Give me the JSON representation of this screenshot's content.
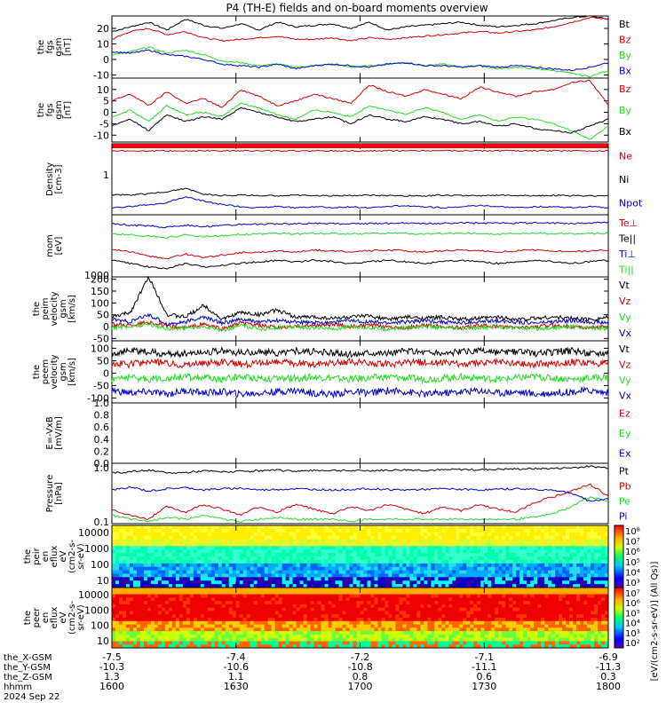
{
  "title": "P4 (TH-E) fields and on-board moments overview",
  "colors": {
    "black": "#000000",
    "red": "#d40000",
    "green": "#22dd22",
    "blue": "#0000cc"
  },
  "chart_data": [
    {
      "type": "line",
      "id": "fgs_gsm",
      "ylabel": [
        "the",
        "fgs",
        "gsm",
        "[nT]"
      ],
      "ylim": [
        -12,
        28
      ],
      "ticks": [
        20,
        10,
        0,
        -10
      ],
      "series": [
        {
          "name": "Bt",
          "color": "red_black",
          "values": [
            18,
            21,
            24,
            19,
            26,
            22,
            20,
            23,
            19,
            24,
            21,
            22,
            23,
            20,
            24,
            19,
            21,
            22,
            23,
            24,
            22,
            21,
            22,
            23,
            25,
            27,
            28,
            26
          ]
        },
        {
          "name": "Bz",
          "color": "red",
          "values": [
            13,
            18,
            20,
            16,
            18,
            14,
            12,
            13,
            14,
            15,
            13,
            13,
            14,
            12,
            14,
            13,
            14,
            15,
            16,
            17,
            18,
            17,
            18,
            19,
            21,
            24,
            27,
            26
          ]
        },
        {
          "name": "By",
          "color": "green",
          "values": [
            3,
            5,
            8,
            4,
            6,
            3,
            -1,
            -2,
            -4,
            -3,
            -5,
            -4,
            -3,
            -5,
            -4,
            -3,
            -2,
            -4,
            -3,
            -5,
            -4,
            -6,
            -5,
            -6,
            -7,
            -9,
            -11,
            -7
          ]
        },
        {
          "name": "Bx",
          "color": "blue",
          "values": [
            5,
            4,
            6,
            3,
            2,
            0,
            -3,
            -4,
            -5,
            -3,
            -6,
            -4,
            -3,
            -4,
            -5,
            -3,
            -2,
            -4,
            -4,
            -5,
            -4,
            -5,
            -4,
            -5,
            -6,
            -7,
            -5,
            -2
          ]
        }
      ]
    },
    {
      "type": "line",
      "id": "fgs_gse",
      "ylabel": [
        "the",
        "fgs",
        "gsm",
        "[nT]"
      ],
      "ylim": [
        -13,
        15
      ],
      "ticks": [
        10,
        5,
        0,
        -5,
        -10
      ],
      "series": [
        {
          "name": "Bz",
          "color": "red",
          "values": [
            5,
            8,
            3,
            9,
            4,
            6,
            2,
            10,
            7,
            3,
            5,
            8,
            6,
            4,
            12,
            9,
            7,
            10,
            8,
            6,
            11,
            9,
            7,
            9,
            10,
            13,
            14,
            3
          ]
        },
        {
          "name": "By",
          "color": "green",
          "values": [
            -2,
            1,
            -4,
            3,
            -1,
            0,
            -2,
            4,
            2,
            -1,
            -3,
            1,
            0,
            -2,
            3,
            1,
            -1,
            2,
            0,
            -3,
            -1,
            -4,
            -2,
            -3,
            -5,
            -8,
            -12,
            -6
          ]
        },
        {
          "name": "Bx",
          "color": "black",
          "values": [
            -6,
            -3,
            -8,
            -1,
            -4,
            -2,
            -3,
            2,
            0,
            -2,
            -4,
            -3,
            -2,
            -5,
            -1,
            -3,
            -4,
            -2,
            -3,
            -5,
            -4,
            -6,
            -5,
            -7,
            -8,
            -9,
            -6,
            -3
          ]
        }
      ]
    },
    {
      "type": "line",
      "id": "density",
      "ylabel": [
        "Density",
        "[cm-3]"
      ],
      "ylim": [
        0.1,
        6
      ],
      "log": true,
      "tick_labels": [
        "1"
      ],
      "series": [
        {
          "name": "Ne",
          "color": "red",
          "values": [
            4,
            4,
            4,
            4,
            4,
            4,
            4,
            4,
            4,
            4,
            4,
            4,
            4,
            4,
            4,
            4,
            4,
            4,
            4,
            4,
            4,
            4,
            4,
            4,
            4,
            4,
            4,
            4
          ]
        },
        {
          "name": "Ni",
          "color": "black",
          "values": [
            0.32,
            0.31,
            0.34,
            0.38,
            0.45,
            0.33,
            0.3,
            0.31,
            0.3,
            0.3,
            0.31,
            0.3,
            0.3,
            0.3,
            0.31,
            0.3,
            0.3,
            0.3,
            0.31,
            0.3,
            0.3,
            0.31,
            0.3,
            0.3,
            0.31,
            0.3,
            0.3,
            0.3
          ]
        },
        {
          "name": "Npot",
          "color": "blue",
          "values": [
            0.15,
            0.16,
            0.18,
            0.2,
            0.28,
            0.22,
            0.18,
            0.16,
            0.15,
            0.16,
            0.15,
            0.16,
            0.15,
            0.16,
            0.15,
            0.16,
            0.17,
            0.16,
            0.15,
            0.16,
            0.17,
            0.16,
            0.15,
            0.16,
            0.16,
            0.15,
            0.16,
            0.15
          ]
        }
      ]
    },
    {
      "type": "line",
      "id": "moments",
      "ylabel": [
        "mom",
        "[eV]"
      ],
      "ylim": [
        700,
        12000
      ],
      "log": true,
      "tick_labels": [
        "1000"
      ],
      "series": [
        {
          "name": "Te⊥",
          "color": "red",
          "values": [
            2500,
            2200,
            1800,
            1600,
            2000,
            1700,
            1900,
            2100,
            2200,
            2300,
            2200,
            2400,
            2300,
            2200,
            2300,
            2400,
            2300,
            2200,
            2300,
            2400,
            2300,
            2200,
            2300,
            2400,
            2300,
            2200,
            2300,
            2400
          ]
        },
        {
          "name": "Te||",
          "color": "black",
          "values": [
            1500,
            1300,
            1100,
            1000,
            1300,
            1100,
            1200,
            1300,
            1400,
            1500,
            1400,
            1500,
            1400,
            1300,
            1400,
            1500,
            1400,
            1300,
            1400,
            1500,
            1400,
            1300,
            1400,
            1500,
            1400,
            1300,
            1400,
            1500
          ]
        },
        {
          "name": "Ti⊥",
          "color": "blue",
          "values": [
            8000,
            7500,
            7200,
            6800,
            7500,
            7000,
            7300,
            7600,
            7800,
            8000,
            7900,
            8100,
            8000,
            7900,
            8000,
            8100,
            8200,
            8000,
            8100,
            8300,
            8200,
            8100,
            8200,
            8300,
            8200,
            8100,
            8300,
            8400
          ]
        },
        {
          "name": "Ti||",
          "color": "green",
          "values": [
            5000,
            4800,
            4500,
            4200,
            4800,
            4400,
            4600,
            4900,
            5000,
            5100,
            5000,
            5200,
            5100,
            5000,
            5100,
            5200,
            5100,
            5000,
            5100,
            5200,
            5100,
            5000,
            5100,
            5200,
            5100,
            5000,
            5100,
            5200
          ]
        }
      ]
    },
    {
      "type": "line",
      "id": "peim_vel",
      "ylabel": [
        "the",
        "peim",
        "velocity",
        "gsm",
        "[km/s]"
      ],
      "ylim": [
        -60,
        210
      ],
      "ticks": [
        200,
        150,
        100,
        50,
        0,
        -50
      ],
      "series": [
        {
          "name": "Vt",
          "color": "black",
          "values": [
            40,
            60,
            210,
            50,
            40,
            90,
            30,
            60,
            50,
            70,
            40,
            40,
            35,
            40,
            45,
            30,
            40,
            35,
            40,
            30,
            35,
            40,
            30,
            35,
            40,
            35,
            30,
            40
          ]
        },
        {
          "name": "Vz",
          "color": "red",
          "values": [
            10,
            5,
            20,
            0,
            -5,
            10,
            -10,
            15,
            5,
            -5,
            0,
            5,
            10,
            0,
            5,
            0,
            -5,
            5,
            0,
            -5,
            5,
            0,
            -5,
            0,
            5,
            0,
            -5,
            0
          ]
        },
        {
          "name": "Vy",
          "color": "green",
          "values": [
            -5,
            0,
            10,
            -10,
            -5,
            0,
            -15,
            5,
            -10,
            -5,
            0,
            -5,
            -10,
            0,
            -5,
            -10,
            -5,
            0,
            -5,
            -10,
            -5,
            0,
            -5,
            -10,
            -5,
            0,
            -5,
            -10
          ]
        },
        {
          "name": "Vx",
          "color": "blue",
          "values": [
            30,
            20,
            50,
            10,
            20,
            40,
            15,
            30,
            20,
            25,
            20,
            15,
            20,
            25,
            20,
            15,
            20,
            25,
            20,
            15,
            20,
            25,
            20,
            15,
            20,
            25,
            20,
            15
          ]
        }
      ]
    },
    {
      "type": "line",
      "id": "peem_vel",
      "ylabel": [
        "the",
        "peem",
        "velocity",
        "gsm",
        "[km/s]"
      ],
      "ylim": [
        -120,
        130
      ],
      "ticks": [
        100,
        50,
        0,
        -50,
        -100
      ],
      "series": [
        {
          "name": "Vt",
          "color": "black",
          "values": [
            80,
            90,
            85,
            75,
            80,
            85,
            90,
            80,
            85,
            80,
            90,
            85,
            80,
            75,
            85,
            80,
            90,
            85,
            80,
            85,
            90,
            80,
            85,
            80,
            85,
            90,
            80,
            85
          ]
        },
        {
          "name": "Vz",
          "color": "red",
          "values": [
            40,
            35,
            45,
            40,
            35,
            40,
            45,
            35,
            40,
            45,
            40,
            35,
            40,
            45,
            40,
            35,
            40,
            45,
            40,
            35,
            40,
            45,
            40,
            35,
            40,
            45,
            40,
            35
          ]
        },
        {
          "name": "Vy",
          "color": "green",
          "values": [
            -20,
            -15,
            -25,
            -20,
            -15,
            -20,
            -25,
            -15,
            -20,
            -25,
            -20,
            -15,
            -20,
            -25,
            -20,
            -15,
            -20,
            -25,
            -20,
            -15,
            -20,
            -25,
            -20,
            -15,
            -20,
            -25,
            -20,
            -15
          ]
        },
        {
          "name": "Vx",
          "color": "blue",
          "values": [
            -70,
            -80,
            -75,
            -85,
            -70,
            -80,
            -75,
            -85,
            -80,
            -75,
            -70,
            -80,
            -85,
            -75,
            -80,
            -70,
            -75,
            -85,
            -80,
            -75,
            -70,
            -80,
            -75,
            -85,
            -80,
            -75,
            -70,
            -80
          ]
        }
      ]
    },
    {
      "type": "line",
      "id": "exb",
      "ylabel": [
        "E=-VxB",
        "[mV/m]"
      ],
      "ylim": [
        0,
        1.0
      ],
      "tick_labels": [
        "1.0",
        "0.8",
        "0.6",
        "0.4",
        "0.2",
        "0.0"
      ],
      "series": [
        {
          "name": "Ez",
          "color": "red",
          "values": []
        },
        {
          "name": "Ey",
          "color": "green",
          "values": []
        },
        {
          "name": "Ex",
          "color": "blue",
          "values": []
        }
      ]
    },
    {
      "type": "line",
      "id": "pressure",
      "ylabel": [
        "Pressure",
        "[nPa]"
      ],
      "ylim": [
        0.1,
        1.2
      ],
      "log": true,
      "tick_labels": [
        "1.0",
        "0.1"
      ],
      "series": [
        {
          "name": "Pt",
          "color": "black",
          "values": [
            0.8,
            0.85,
            0.9,
            0.8,
            0.82,
            0.88,
            0.84,
            0.86,
            0.88,
            0.9,
            0.87,
            0.89,
            0.9,
            0.88,
            0.89,
            0.9,
            0.92,
            0.9,
            0.91,
            0.93,
            0.92,
            0.94,
            0.95,
            0.96,
            0.97,
            1.0,
            1.05,
            1.0
          ]
        },
        {
          "name": "Pb",
          "color": "red",
          "values": [
            0.18,
            0.14,
            0.12,
            0.2,
            0.16,
            0.22,
            0.18,
            0.14,
            0.2,
            0.16,
            0.22,
            0.18,
            0.15,
            0.2,
            0.17,
            0.22,
            0.18,
            0.15,
            0.2,
            0.17,
            0.22,
            0.18,
            0.16,
            0.24,
            0.3,
            0.38,
            0.5,
            0.3
          ]
        },
        {
          "name": "Pe",
          "color": "green",
          "values": [
            0.14,
            0.12,
            0.11,
            0.13,
            0.12,
            0.14,
            0.12,
            0.11,
            0.12,
            0.13,
            0.12,
            0.12,
            0.12,
            0.11,
            0.12,
            0.12,
            0.12,
            0.12,
            0.12,
            0.12,
            0.12,
            0.12,
            0.12,
            0.13,
            0.15,
            0.2,
            0.3,
            0.25
          ]
        },
        {
          "name": "Pi",
          "color": "blue",
          "values": [
            0.4,
            0.45,
            0.38,
            0.42,
            0.44,
            0.4,
            0.42,
            0.43,
            0.4,
            0.41,
            0.42,
            0.41,
            0.4,
            0.41,
            0.42,
            0.41,
            0.4,
            0.41,
            0.42,
            0.41,
            0.4,
            0.41,
            0.42,
            0.41,
            0.4,
            0.35,
            0.25,
            0.28
          ]
        }
      ]
    },
    {
      "type": "heatmap",
      "id": "peir_en",
      "ylabel": [
        "the",
        "peir",
        "en",
        "eflux",
        "eV",
        "(cm2-s-",
        "sr-eV)"
      ],
      "yticks": [
        "10000",
        "1000",
        "100",
        "10"
      ]
    },
    {
      "type": "heatmap",
      "id": "peer_en",
      "ylabel": [
        "the",
        "peer",
        "en",
        "eflux",
        "eV",
        "(cm2-s-",
        "sr-eV)"
      ],
      "yticks": [
        "10000",
        "1000",
        "100",
        "10"
      ]
    }
  ],
  "colorbar_top": {
    "labels": [
      "10⁸",
      "10⁷",
      "10⁶",
      "10⁵",
      "10⁴",
      "10³"
    ],
    "units": "[eV/(cm2-s-sr-eV)]"
  },
  "colorbar_bottom": {
    "labels": [
      "10⁷",
      "10⁶",
      "10⁵",
      "10⁴",
      "10³",
      "10²"
    ],
    "units": "[eV/(cm2-s-sr-eV)]"
  },
  "colorbar_units_full": "[eV/(cm2-s-sr-eV)] (All Qs)]",
  "xaxis": {
    "rows": [
      {
        "label": "the_X-GSM",
        "values": [
          "-7.5",
          "-7.4",
          "-7.2",
          "-7.1",
          "-6.9"
        ]
      },
      {
        "label": "the_Y-GSM",
        "values": [
          "-10.3",
          "-10.6",
          "-10.8",
          "-11.1",
          "-11.3"
        ]
      },
      {
        "label": "the_Z-GSM",
        "values": [
          "1.3",
          "1.1",
          "0.8",
          "0.6",
          "0.3"
        ]
      },
      {
        "label": "hhmm",
        "values": [
          "1600",
          "1630",
          "1700",
          "1730",
          "1800"
        ]
      }
    ],
    "date": "2024 Sep 22"
  }
}
